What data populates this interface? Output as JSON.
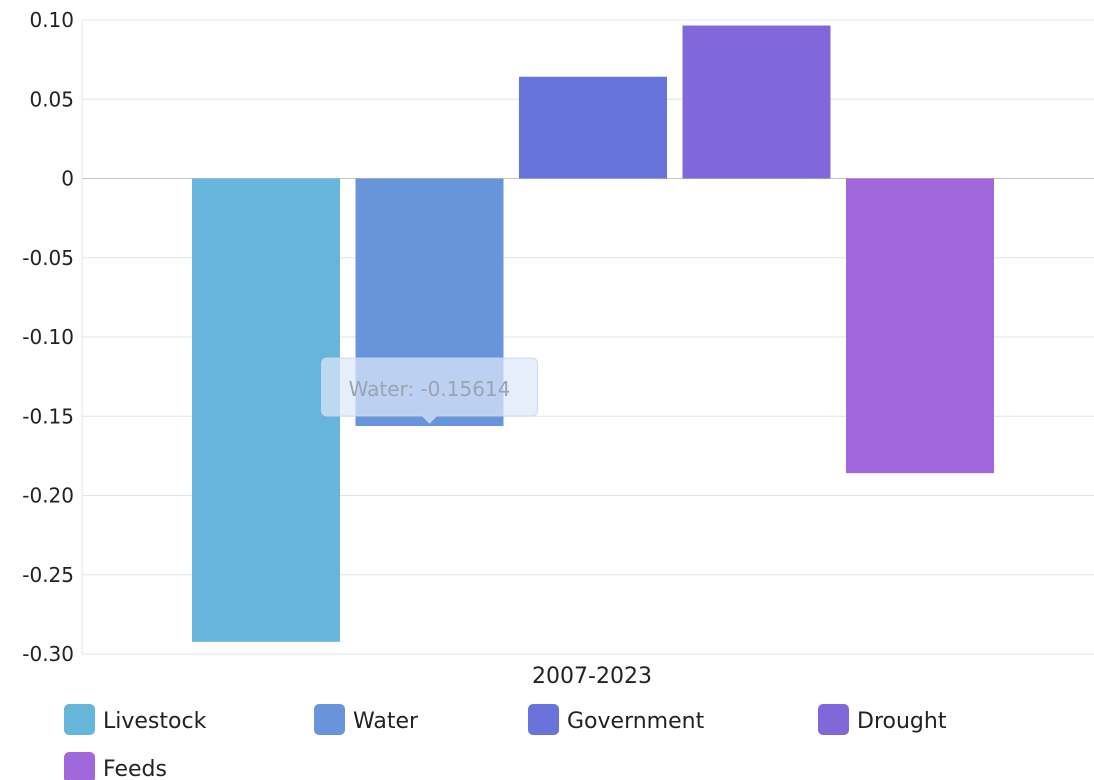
{
  "chart_data": {
    "type": "bar",
    "categories": [
      "2007-2023"
    ],
    "series": [
      {
        "name": "Livestock",
        "values": [
          -0.2923
        ],
        "color": "#66b5da"
      },
      {
        "name": "Water",
        "values": [
          -0.15614
        ],
        "color": "#6794db"
      },
      {
        "name": "Government",
        "values": [
          0.0642
        ],
        "color": "#6973dc"
      },
      {
        "name": "Drought",
        "values": [
          0.0965
        ],
        "color": "#8068db"
      },
      {
        "name": "Feeds",
        "values": [
          -0.1859
        ],
        "color": "#a168db"
      }
    ],
    "ylim": [
      -0.3,
      0.1
    ],
    "y_ticks": [
      "0.10",
      "0.05",
      "0",
      "-0.05",
      "-0.10",
      "-0.15",
      "-0.20",
      "-0.25",
      "-0.30"
    ],
    "y_tick_values": [
      0.1,
      0.05,
      0,
      -0.05,
      -0.1,
      -0.15,
      -0.2,
      -0.25,
      -0.3
    ],
    "grid": true,
    "legend_position": "bottom-left",
    "tooltip": {
      "text": "Water: -0.15614",
      "series": "Water"
    }
  }
}
